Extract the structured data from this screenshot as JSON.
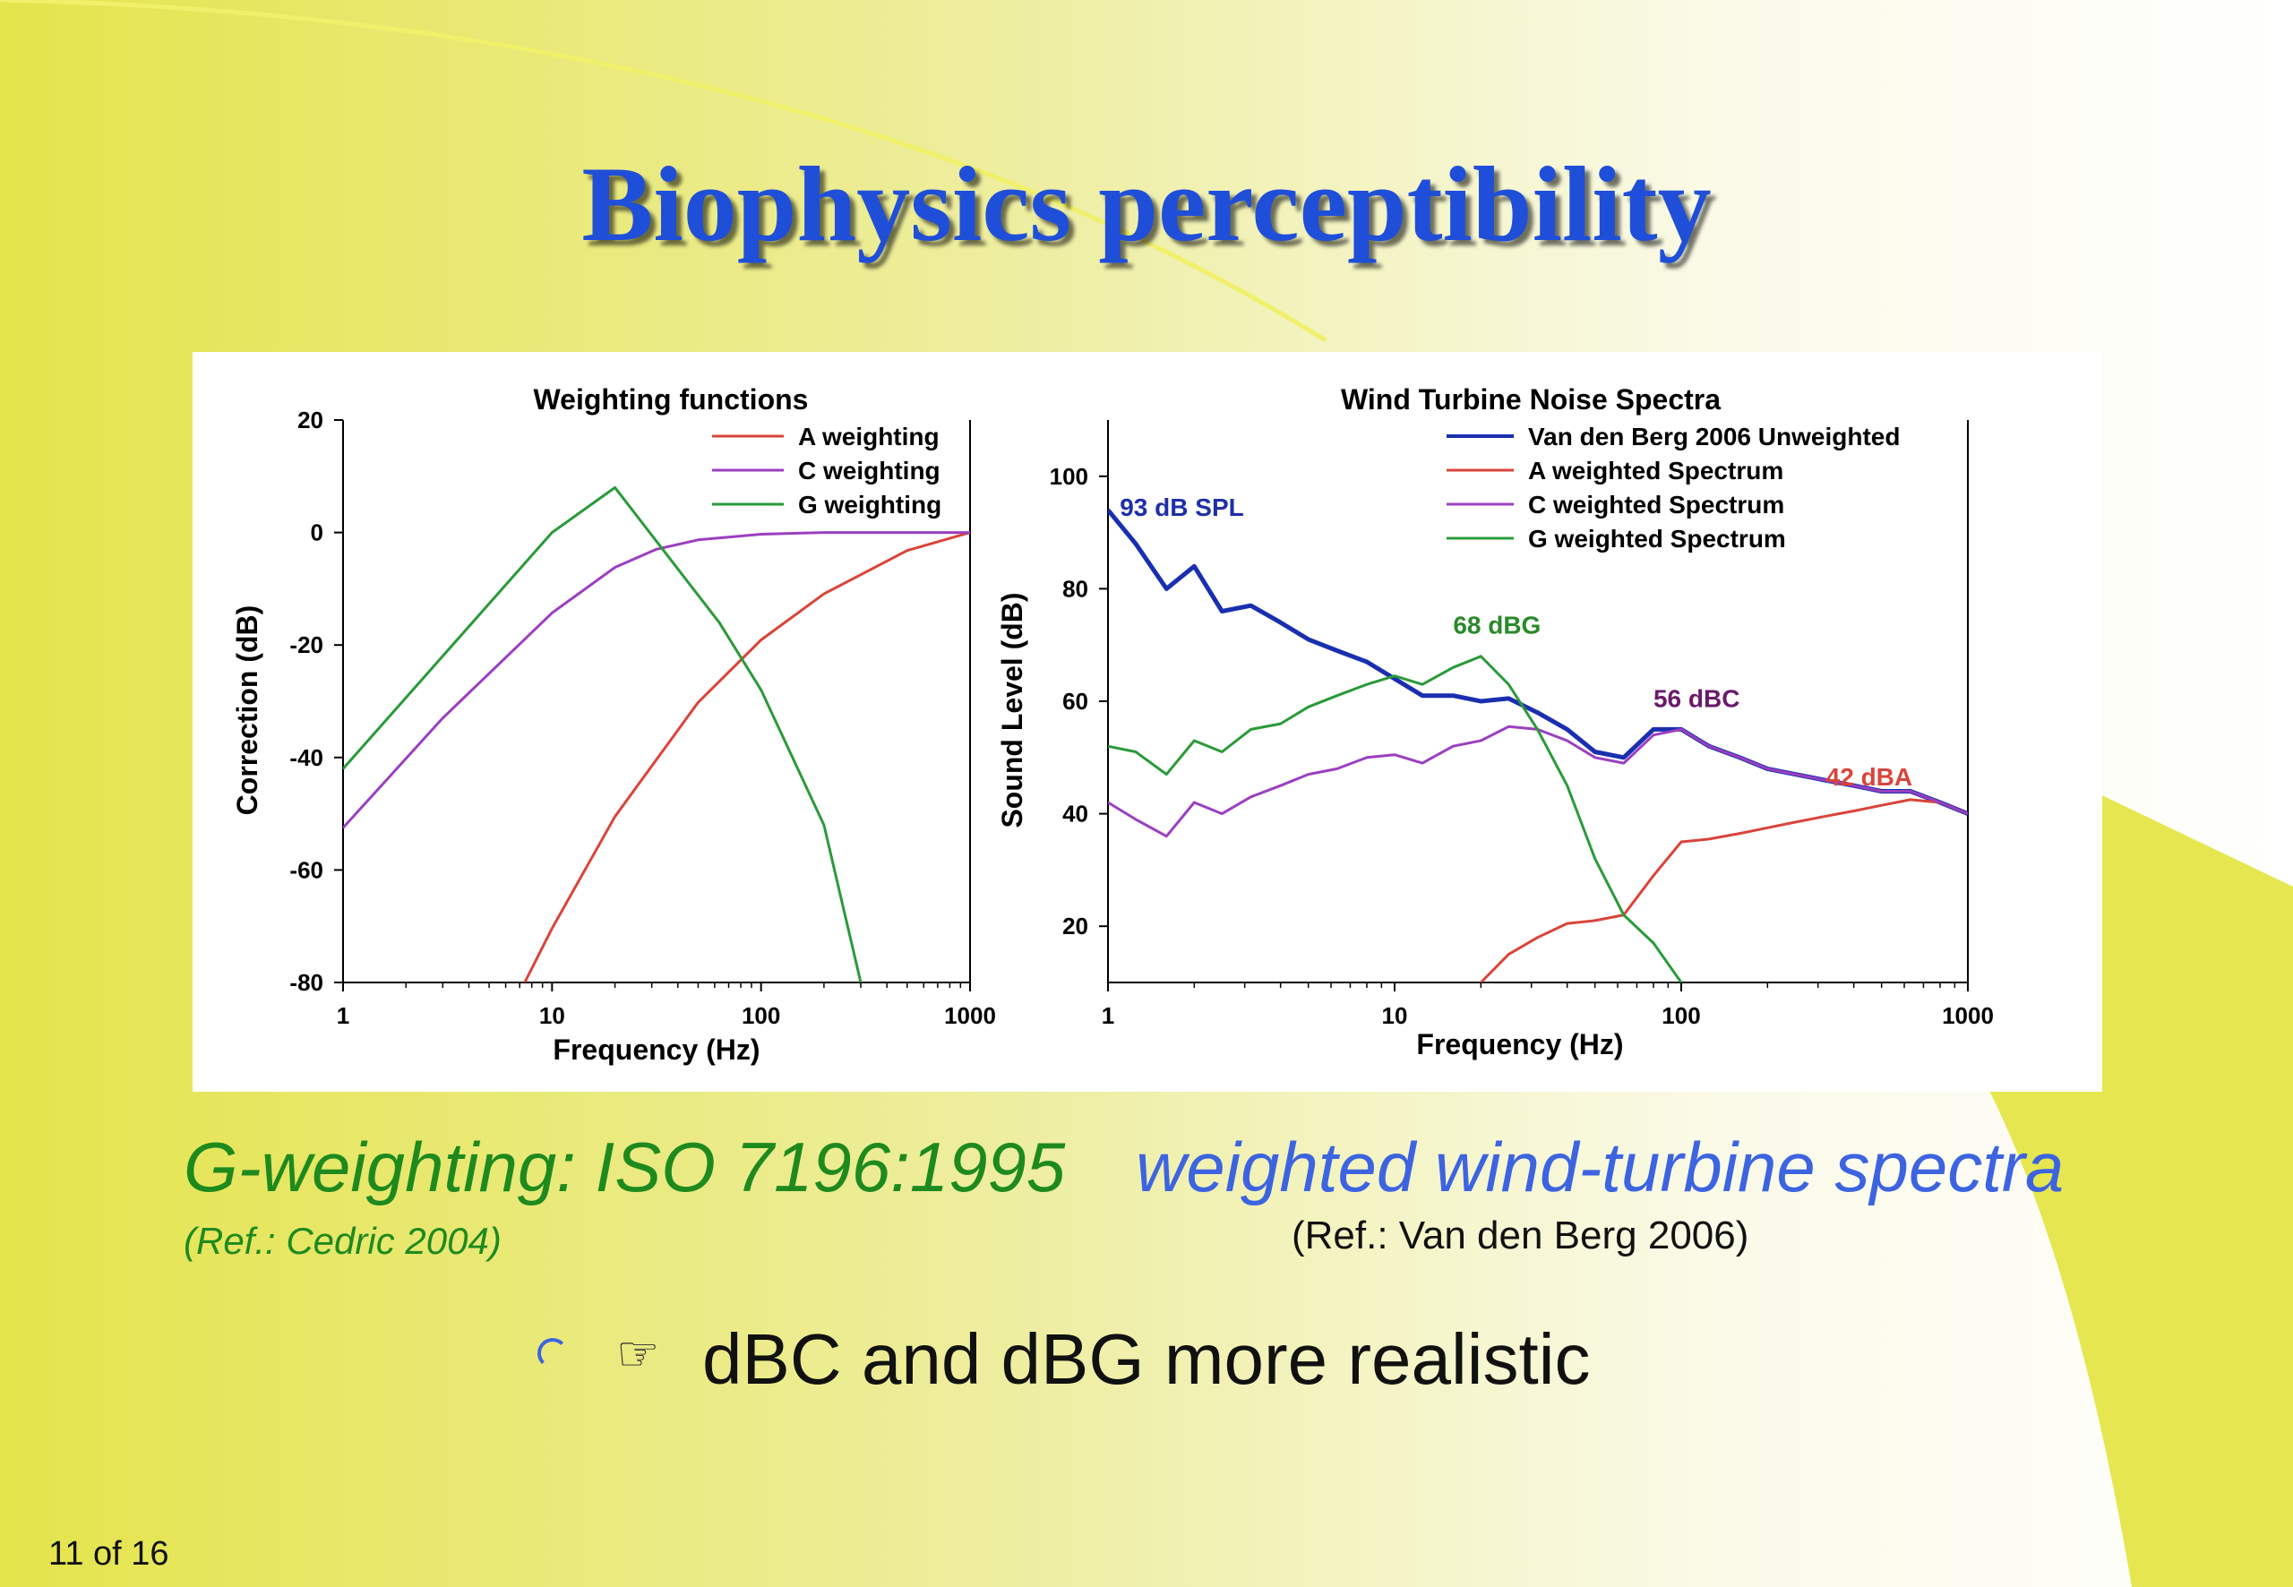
{
  "slide": {
    "title": "Biophysics perceptibility",
    "caption_weighting": "G-weighting: ISO 7196:1995",
    "caption_spectra": "weighted wind-turbine spectra",
    "ref_left": "(Ref.: Cedric 2004)",
    "ref_right": "(Ref.: Van den Berg 2006)",
    "bullet_text": "dBC and dBG more realistic",
    "bullet_icon": "pointing-hand-icon",
    "page_indicator": "11 of 16",
    "colors": {
      "background": "#e8e85a",
      "title": "#1f4fd8",
      "caption_green": "#1e8a1e",
      "caption_blue": "#3d64e0"
    }
  },
  "chart_data": [
    {
      "type": "line",
      "title": "Weighting functions",
      "xlabel": "Frequency (Hz)",
      "ylabel": "Correction (dB)",
      "xscale": "log",
      "xlim": [
        1,
        1000
      ],
      "ylim": [
        -80,
        20
      ],
      "xticks": [
        "1",
        "10",
        "100",
        "1000"
      ],
      "yticks": [
        "20",
        "0",
        "-20",
        "-40",
        "-60",
        "-80"
      ],
      "legend": "top-right",
      "series": [
        {
          "name": "A weighting",
          "color": "#d9443a",
          "points": [
            [
              7.4,
              -80
            ],
            [
              10,
              -70.4
            ],
            [
              20,
              -50.5
            ],
            [
              50,
              -30.2
            ],
            [
              100,
              -19.1
            ],
            [
              200,
              -10.9
            ],
            [
              500,
              -3.2
            ],
            [
              1000,
              0
            ]
          ]
        },
        {
          "name": "C weighting",
          "color": "#9b3fc0",
          "points": [
            [
              1,
              -52.5
            ],
            [
              3,
              -33
            ],
            [
              10,
              -14.3
            ],
            [
              20,
              -6.2
            ],
            [
              31.5,
              -3
            ],
            [
              50,
              -1.3
            ],
            [
              100,
              -0.3
            ],
            [
              200,
              0
            ],
            [
              1000,
              0
            ]
          ]
        },
        {
          "name": "G weighting",
          "color": "#2a9a3a",
          "points": [
            [
              1,
              -42
            ],
            [
              10,
              0
            ],
            [
              20,
              8
            ],
            [
              63.1,
              -16
            ],
            [
              100,
              -28
            ],
            [
              200,
              -52
            ],
            [
              300,
              -80
            ]
          ]
        }
      ]
    },
    {
      "type": "line",
      "title": "Wind Turbine Noise Spectra",
      "xlabel": "Frequency (Hz)",
      "ylabel": "Sound Level (dB)",
      "xscale": "log",
      "xlim": [
        1,
        1000
      ],
      "ylim": [
        10,
        110
      ],
      "xticks": [
        "1",
        "10",
        "100",
        "1000"
      ],
      "yticks": [
        "100",
        "80",
        "60",
        "40",
        "20"
      ],
      "legend": "top-right",
      "annotations": [
        {
          "text": "93 dB SPL",
          "color": "#1f2fa8",
          "x": 1.1,
          "y": 93
        },
        {
          "text": "68 dBG",
          "color": "#2a8a2a",
          "x": 16,
          "y": 72
        },
        {
          "text": "56 dBC",
          "color": "#6a1a6a",
          "x": 80,
          "y": 59
        },
        {
          "text": "42 dBA",
          "color": "#d9443a",
          "x": 320,
          "y": 45
        }
      ],
      "series": [
        {
          "name": "Van den Berg 2006 Unweighted",
          "color": "#1a2fb0",
          "width": 5,
          "points": [
            [
              1,
              94
            ],
            [
              1.25,
              88
            ],
            [
              1.6,
              80
            ],
            [
              2,
              84
            ],
            [
              2.5,
              76
            ],
            [
              3.15,
              77
            ],
            [
              4,
              74
            ],
            [
              5,
              71
            ],
            [
              6.3,
              69
            ],
            [
              8,
              67
            ],
            [
              10,
              64
            ],
            [
              12.5,
              61
            ],
            [
              16,
              61
            ],
            [
              20,
              60
            ],
            [
              25,
              60.5
            ],
            [
              31.5,
              58
            ],
            [
              40,
              55
            ],
            [
              50,
              51
            ],
            [
              63,
              50
            ],
            [
              80,
              55
            ],
            [
              100,
              55
            ],
            [
              125,
              52
            ],
            [
              160,
              50
            ],
            [
              200,
              48
            ],
            [
              250,
              47
            ],
            [
              315,
              46
            ],
            [
              400,
              45
            ],
            [
              500,
              44
            ],
            [
              630,
              44
            ],
            [
              800,
              42
            ],
            [
              1000,
              40
            ]
          ]
        },
        {
          "name": "A weighted Spectrum",
          "color": "#d9443a",
          "width": 3,
          "points": [
            [
              20,
              10
            ],
            [
              25,
              15
            ],
            [
              31.5,
              18
            ],
            [
              40,
              20.5
            ],
            [
              50,
              21
            ],
            [
              63,
              22
            ],
            [
              80,
              29
            ],
            [
              100,
              35
            ],
            [
              125,
              35.5
            ],
            [
              160,
              36.5
            ],
            [
              200,
              37.5
            ],
            [
              250,
              38.5
            ],
            [
              315,
              39.5
            ],
            [
              400,
              40.5
            ],
            [
              500,
              41.5
            ],
            [
              630,
              42.5
            ],
            [
              800,
              42
            ],
            [
              1000,
              40
            ]
          ]
        },
        {
          "name": "C weighted Spectrum",
          "color": "#9b3fc0",
          "width": 3,
          "points": [
            [
              1,
              42
            ],
            [
              1.25,
              39
            ],
            [
              1.6,
              36
            ],
            [
              2,
              42
            ],
            [
              2.5,
              40
            ],
            [
              3.15,
              43
            ],
            [
              4,
              45
            ],
            [
              5,
              47
            ],
            [
              6.3,
              48
            ],
            [
              8,
              50
            ],
            [
              10,
              50.5
            ],
            [
              12.5,
              49
            ],
            [
              16,
              52
            ],
            [
              20,
              53
            ],
            [
              25,
              55.5
            ],
            [
              31.5,
              55
            ],
            [
              40,
              53
            ],
            [
              50,
              50
            ],
            [
              63,
              49
            ],
            [
              80,
              54
            ],
            [
              100,
              55
            ],
            [
              125,
              52
            ],
            [
              160,
              50
            ],
            [
              200,
              48
            ],
            [
              250,
              47
            ],
            [
              315,
              46
            ],
            [
              400,
              45
            ],
            [
              500,
              44
            ],
            [
              630,
              44
            ],
            [
              800,
              42
            ],
            [
              1000,
              40
            ]
          ]
        },
        {
          "name": "G weighted Spectrum",
          "color": "#2a9a3a",
          "width": 3,
          "points": [
            [
              1,
              52
            ],
            [
              1.25,
              51
            ],
            [
              1.6,
              47
            ],
            [
              2,
              53
            ],
            [
              2.5,
              51
            ],
            [
              3.15,
              55
            ],
            [
              4,
              56
            ],
            [
              5,
              59
            ],
            [
              6.3,
              61
            ],
            [
              8,
              63
            ],
            [
              10,
              64.5
            ],
            [
              12.5,
              63
            ],
            [
              16,
              66
            ],
            [
              20,
              68
            ],
            [
              25,
              63
            ],
            [
              31.5,
              55
            ],
            [
              40,
              45
            ],
            [
              50,
              32
            ],
            [
              63,
              22
            ],
            [
              80,
              17
            ],
            [
              100,
              10
            ]
          ]
        }
      ]
    }
  ]
}
